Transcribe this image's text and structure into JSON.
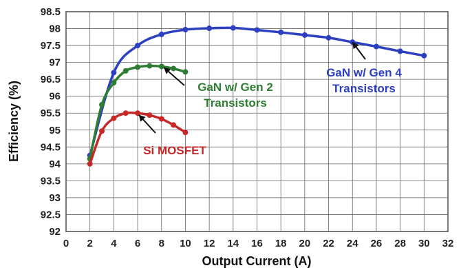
{
  "chart_data": {
    "type": "line",
    "title": "",
    "xlabel": "Output Current (A)",
    "ylabel": "Efficiency (%)",
    "xlim": [
      0,
      32
    ],
    "ylim": [
      92,
      98.5
    ],
    "xticks": [
      0,
      2,
      4,
      6,
      8,
      10,
      12,
      14,
      16,
      18,
      20,
      22,
      24,
      26,
      28,
      30,
      32
    ],
    "yticks": [
      92,
      92.5,
      93,
      93.5,
      94,
      94.5,
      95,
      95.5,
      96,
      96.5,
      97,
      97.5,
      98,
      98.5
    ],
    "grid": true,
    "series": [
      {
        "name": "GaN w/ Gen 4 Transistors",
        "color": "#2b3fc0",
        "x": [
          2,
          4,
          6,
          8,
          10,
          12,
          14,
          16,
          18,
          20,
          22,
          24,
          26,
          28,
          30
        ],
        "y": [
          94.25,
          96.7,
          97.5,
          97.83,
          97.97,
          98.01,
          98.02,
          97.96,
          97.89,
          97.81,
          97.73,
          97.6,
          97.47,
          97.33,
          97.2
        ]
      },
      {
        "name": "GaN w/ Gen 2 Transistors",
        "color": "#2e7d32",
        "x": [
          2,
          3,
          4,
          5,
          6,
          7,
          8,
          9,
          10
        ],
        "y": [
          94.15,
          95.75,
          96.4,
          96.75,
          96.86,
          96.9,
          96.88,
          96.82,
          96.72
        ]
      },
      {
        "name": "Si MOSFET",
        "color": "#c62828",
        "x": [
          2,
          3,
          4,
          5,
          6,
          7,
          8,
          9,
          10
        ],
        "y": [
          94.0,
          94.97,
          95.35,
          95.5,
          95.5,
          95.44,
          95.33,
          95.15,
          94.93
        ]
      }
    ],
    "annotations": [
      {
        "lines": [
          "GaN w/ Gen 4",
          "Transistors"
        ],
        "color": "#2b3fc0",
        "arrow_to": [
          24,
          97.6
        ]
      },
      {
        "lines": [
          "GaN w/ Gen 2",
          "Transistors"
        ],
        "color": "#2e7d32",
        "arrow_to": [
          8.2,
          96.85
        ]
      },
      {
        "lines": [
          "Si MOSFET"
        ],
        "color": "#c62828",
        "arrow_to": [
          6.1,
          95.45
        ]
      }
    ]
  }
}
